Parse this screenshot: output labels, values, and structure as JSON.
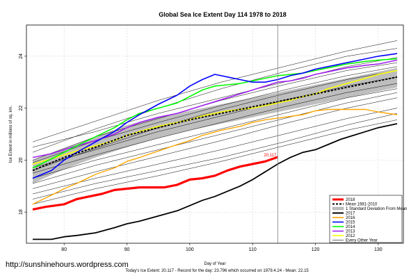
{
  "chart_data": {
    "type": "line",
    "title": "Global Sea Ice Extent Day 114 1978 to 2018",
    "xlabel": "Day of Year",
    "ylabel": "Ice Extent in millions of sq. km.",
    "xlim": [
      74,
      134
    ],
    "ylim": [
      16.8,
      25.2
    ],
    "xticks": [
      80,
      90,
      100,
      110,
      120,
      130
    ],
    "yticks": [
      18,
      20,
      22,
      24
    ],
    "grid": true,
    "footer": "Today's Ice Extent: 20.117  - Record for the day: 23.796 which occurred on 1979.4.24  - Mean: 22.15",
    "watermark": "http://sunshinehours.wordpress.com",
    "current_day": 114,
    "current_label": "20.117",
    "current_value": 20.117,
    "legend_position": "bottom-right",
    "legend_entries": [
      "2018",
      "Mean 1981-2010",
      "1 Standard Deviation From Mean",
      "2017",
      "2016",
      "2015",
      "2014",
      "2013",
      "2012",
      "Every Other Year"
    ],
    "colors": {
      "2018": "#ff0000",
      "mean": "#000000",
      "band": "#bebebe",
      "2017": "#000000",
      "2016": "#ffa500",
      "2015": "#0000ff",
      "2014": "#00ff00",
      "2013": "#a020f0",
      "2012": "#ffff00",
      "other": "#000000",
      "current_day_line": "#808080"
    },
    "mean": {
      "x": [
        75,
        80,
        85,
        90,
        95,
        100,
        105,
        110,
        115,
        120,
        125,
        130,
        133
      ],
      "y": [
        19.6,
        20.1,
        20.5,
        20.95,
        21.25,
        21.55,
        21.8,
        22.05,
        22.3,
        22.55,
        22.8,
        23.05,
        23.2
      ]
    },
    "band": {
      "x": [
        75,
        80,
        85,
        90,
        95,
        100,
        105,
        110,
        115,
        120,
        125,
        130,
        133
      ],
      "upper": [
        20.0,
        20.45,
        20.9,
        21.35,
        21.65,
        21.9,
        22.15,
        22.4,
        22.65,
        22.9,
        23.15,
        23.4,
        23.55
      ],
      "lower": [
        19.1,
        19.65,
        20.1,
        20.5,
        20.85,
        21.15,
        21.4,
        21.65,
        21.9,
        22.15,
        22.4,
        22.65,
        22.8
      ]
    },
    "series": [
      {
        "name": "2018",
        "x": [
          75,
          77,
          80,
          82,
          84,
          86,
          88,
          90,
          92,
          94,
          96,
          98,
          100,
          102,
          104,
          106,
          108,
          110,
          112,
          114
        ],
        "y": [
          18.1,
          18.2,
          18.3,
          18.5,
          18.6,
          18.7,
          18.85,
          18.9,
          18.95,
          18.95,
          18.95,
          19.05,
          19.25,
          19.3,
          19.4,
          19.6,
          19.75,
          19.85,
          19.95,
          20.117
        ]
      },
      {
        "name": "2017",
        "x": [
          75,
          78,
          80,
          82,
          85,
          88,
          90,
          92,
          95,
          98,
          100,
          102,
          104,
          106,
          108,
          110,
          112,
          114,
          116,
          118,
          120,
          122,
          124,
          126,
          128,
          130,
          133
        ],
        "y": [
          16.95,
          16.95,
          17.05,
          17.1,
          17.2,
          17.4,
          17.55,
          17.65,
          17.85,
          18.05,
          18.25,
          18.45,
          18.6,
          18.8,
          19.0,
          19.25,
          19.55,
          19.85,
          20.1,
          20.3,
          20.4,
          20.6,
          20.8,
          20.95,
          21.1,
          21.25,
          21.4
        ]
      },
      {
        "name": "2016",
        "x": [
          75,
          78,
          80,
          82,
          85,
          88,
          90,
          92,
          95,
          98,
          100,
          102,
          105,
          108,
          110,
          112,
          115,
          118,
          120,
          122,
          125,
          128,
          130,
          133
        ],
        "y": [
          18.3,
          18.65,
          18.9,
          19.1,
          19.45,
          19.7,
          19.95,
          20.1,
          20.35,
          20.6,
          20.75,
          20.95,
          21.15,
          21.3,
          21.45,
          21.55,
          21.65,
          21.75,
          21.9,
          21.95,
          21.95,
          21.95,
          21.85,
          21.75
        ]
      },
      {
        "name": "2015",
        "x": [
          75,
          78,
          80,
          82,
          85,
          88,
          90,
          92,
          95,
          98,
          100,
          102,
          104,
          106,
          108,
          110,
          112,
          114,
          116,
          118,
          120,
          122,
          125,
          128,
          130,
          133
        ],
        "y": [
          19.3,
          19.6,
          20.0,
          20.3,
          20.7,
          21.1,
          21.45,
          21.75,
          22.15,
          22.5,
          22.85,
          23.1,
          23.3,
          23.2,
          23.1,
          23.0,
          23.0,
          23.1,
          23.25,
          23.35,
          23.5,
          23.6,
          23.75,
          23.9,
          24.0,
          24.1
        ]
      },
      {
        "name": "2014",
        "x": [
          75,
          78,
          80,
          82,
          85,
          88,
          90,
          92,
          95,
          98,
          100,
          102,
          104,
          106,
          108,
          110,
          112,
          114,
          116,
          118,
          120,
          122,
          125,
          128,
          130,
          133
        ],
        "y": [
          19.7,
          20.05,
          20.3,
          20.55,
          20.9,
          21.25,
          21.55,
          21.8,
          22.0,
          22.2,
          22.45,
          22.7,
          22.85,
          22.9,
          22.95,
          23.05,
          23.15,
          23.25,
          23.3,
          23.35,
          23.45,
          23.55,
          23.7,
          23.8,
          23.85,
          23.9
        ]
      },
      {
        "name": "2013",
        "x": [
          75,
          78,
          80,
          82,
          85,
          88,
          90,
          92,
          95,
          98,
          100,
          102,
          104,
          106,
          108,
          110,
          112,
          114,
          116,
          118,
          120,
          122,
          125,
          128,
          130,
          133
        ],
        "y": [
          20.1,
          20.25,
          20.4,
          20.55,
          20.75,
          21.0,
          21.25,
          21.45,
          21.65,
          21.8,
          21.95,
          22.1,
          22.25,
          22.4,
          22.55,
          22.7,
          22.85,
          23.0,
          23.05,
          23.15,
          23.3,
          23.4,
          23.55,
          23.65,
          23.7,
          23.85
        ]
      },
      {
        "name": "2012",
        "x": [
          75,
          78,
          80,
          82,
          85,
          88,
          90,
          92,
          95,
          98,
          100,
          102,
          104,
          106,
          108,
          110,
          112,
          114,
          116,
          118,
          120,
          122,
          125,
          128,
          130,
          133
        ],
        "y": [
          19.85,
          20.05,
          20.2,
          20.35,
          20.55,
          20.75,
          20.95,
          21.1,
          21.3,
          21.45,
          21.55,
          21.7,
          21.8,
          21.9,
          21.95,
          22.0,
          22.1,
          22.2,
          22.3,
          22.45,
          22.55,
          22.75,
          22.95,
          23.15,
          23.3,
          23.45
        ]
      }
    ],
    "other_years": [
      {
        "x": [
          75,
          85,
          95,
          105,
          115,
          125,
          133
        ],
        "y": [
          20.5,
          21.1,
          21.8,
          22.4,
          23.0,
          23.6,
          23.95
        ]
      },
      {
        "x": [
          75,
          85,
          95,
          105,
          115,
          125,
          133
        ],
        "y": [
          20.3,
          21.2,
          22.0,
          22.75,
          23.4,
          24.0,
          24.3
        ]
      },
      {
        "x": [
          75,
          85,
          95,
          105,
          115,
          125,
          133
        ],
        "y": [
          19.9,
          20.75,
          21.45,
          22.1,
          22.7,
          23.25,
          23.6
        ]
      },
      {
        "x": [
          75,
          85,
          95,
          105,
          115,
          125,
          133
        ],
        "y": [
          19.7,
          20.4,
          21.1,
          21.7,
          22.3,
          22.85,
          23.2
        ]
      },
      {
        "x": [
          75,
          85,
          95,
          105,
          115,
          125,
          133
        ],
        "y": [
          19.5,
          20.2,
          20.85,
          21.45,
          22.05,
          22.6,
          22.95
        ]
      },
      {
        "x": [
          75,
          85,
          95,
          105,
          115,
          125,
          133
        ],
        "y": [
          19.3,
          20.0,
          20.6,
          21.2,
          21.8,
          22.4,
          22.75
        ]
      },
      {
        "x": [
          75,
          85,
          95,
          105,
          115,
          125,
          133
        ],
        "y": [
          19.1,
          19.8,
          20.4,
          21.0,
          21.6,
          22.2,
          22.6
        ]
      },
      {
        "x": [
          75,
          85,
          95,
          105,
          115,
          125,
          133
        ],
        "y": [
          18.9,
          19.55,
          20.15,
          20.75,
          21.4,
          22.0,
          22.4
        ]
      },
      {
        "x": [
          75,
          85,
          95,
          105,
          115,
          125,
          133
        ],
        "y": [
          18.7,
          19.3,
          19.85,
          20.4,
          21.0,
          21.6,
          22.0
        ]
      },
      {
        "x": [
          75,
          85,
          95,
          105,
          115,
          125,
          133
        ],
        "y": [
          18.5,
          19.1,
          19.6,
          20.1,
          20.7,
          21.35,
          21.8
        ]
      },
      {
        "x": [
          75,
          85,
          95,
          105,
          115,
          125,
          133
        ],
        "y": [
          20.7,
          21.5,
          22.3,
          23.0,
          23.6,
          24.2,
          24.6
        ]
      },
      {
        "x": [
          75,
          85,
          95,
          105,
          115,
          125,
          133
        ],
        "y": [
          20.0,
          20.9,
          21.6,
          22.3,
          22.9,
          23.45,
          23.75
        ]
      },
      {
        "x": [
          75,
          85,
          95,
          105,
          115,
          125,
          133
        ],
        "y": [
          18.3,
          18.9,
          19.4,
          19.95,
          20.55,
          21.15,
          21.55
        ]
      },
      {
        "x": [
          75,
          85,
          95,
          105,
          115,
          125,
          133
        ],
        "y": [
          19.6,
          20.45,
          21.25,
          21.95,
          22.55,
          23.1,
          23.45
        ]
      }
    ]
  }
}
